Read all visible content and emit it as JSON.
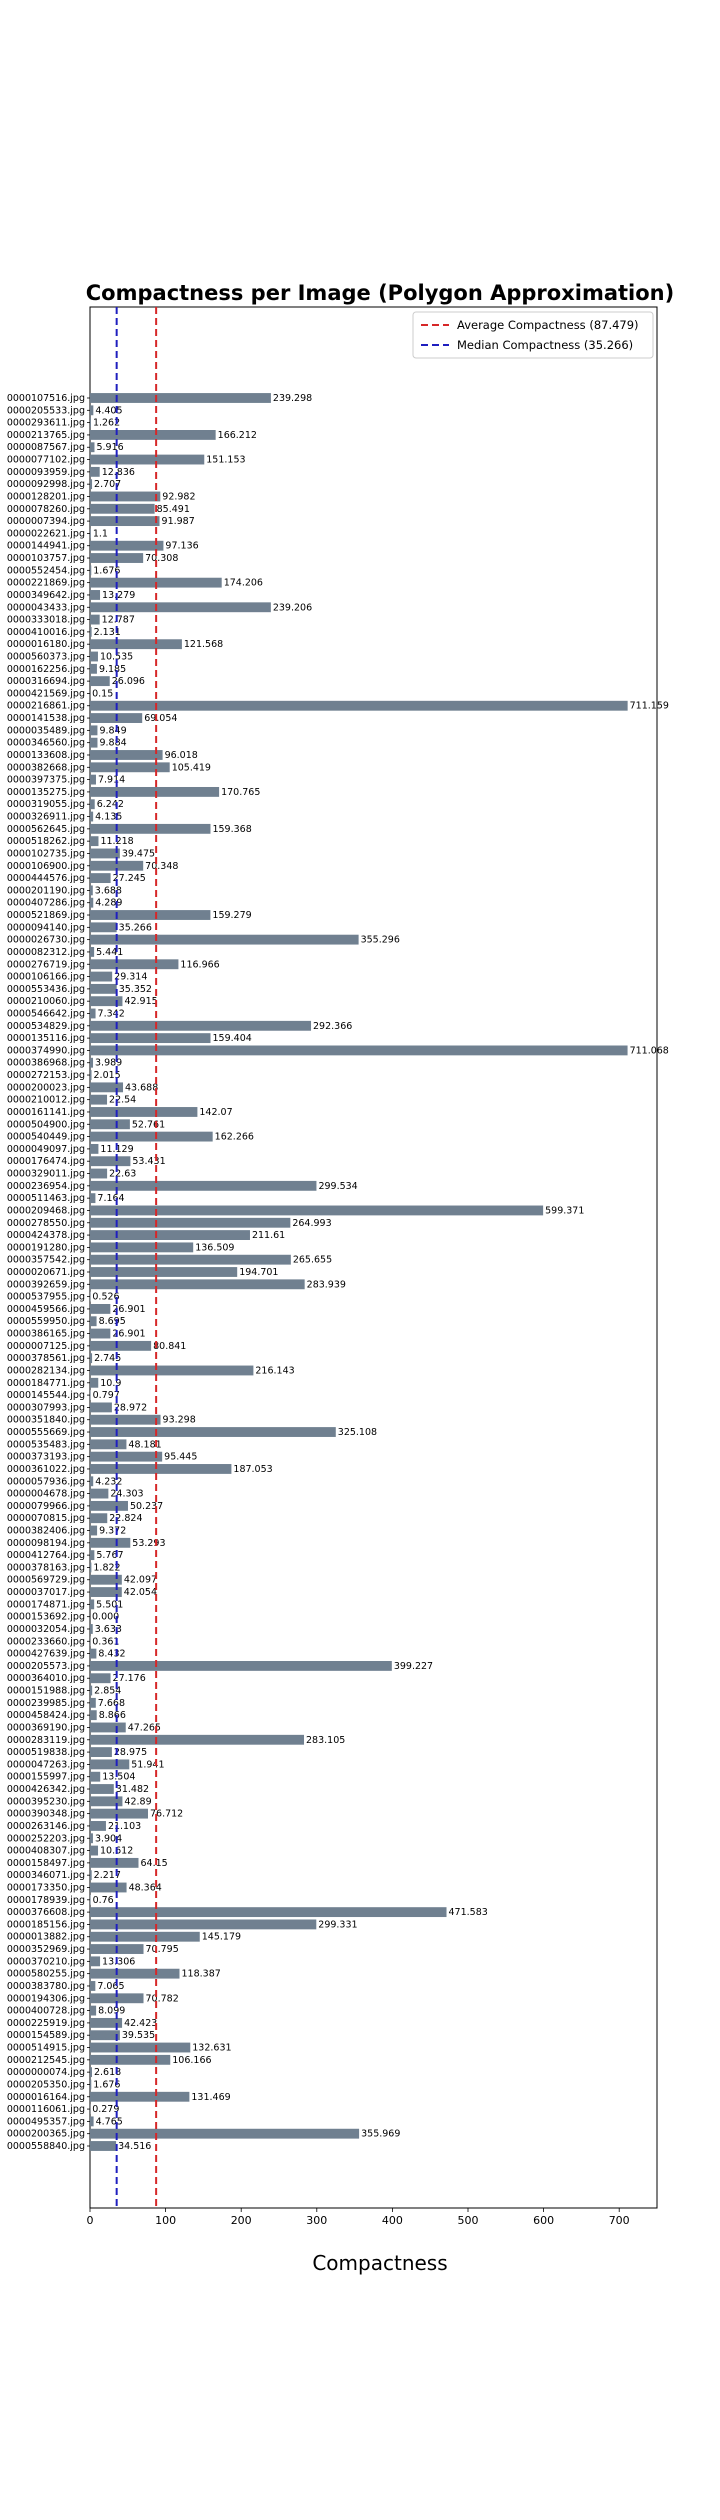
{
  "chart_data": {
    "type": "bar",
    "orientation": "horizontal",
    "title": "Compactness per Image (Polygon Approximation)",
    "xlabel": "Compactness",
    "ylabel": "",
    "xlim": [
      0,
      750
    ],
    "xticks": [
      0,
      100,
      200,
      300,
      400,
      500,
      600,
      700
    ],
    "grid": false,
    "legend_position": "top-right",
    "bar_color": "#708090",
    "reference_lines": [
      {
        "label": "Average Compactness (87.479)",
        "value": 87.479,
        "color": "#d62728",
        "style": "dashed"
      },
      {
        "label": "Median Compactness (35.266)",
        "value": 35.266,
        "color": "#1f1fbf",
        "style": "dashed"
      }
    ],
    "categories": [
      "0000107516.jpg",
      "0000205533.jpg",
      "0000293611.jpg",
      "0000213765.jpg",
      "0000087567.jpg",
      "0000077102.jpg",
      "0000093959.jpg",
      "0000092998.jpg",
      "0000128201.jpg",
      "0000078260.jpg",
      "0000007394.jpg",
      "0000022621.jpg",
      "0000144941.jpg",
      "0000103757.jpg",
      "0000552454.jpg",
      "0000221869.jpg",
      "0000349642.jpg",
      "0000043433.jpg",
      "0000333018.jpg",
      "0000410016.jpg",
      "0000016180.jpg",
      "0000560373.jpg",
      "0000162256.jpg",
      "0000316694.jpg",
      "0000421569.jpg",
      "0000216861.jpg",
      "0000141538.jpg",
      "0000035489.jpg",
      "0000346560.jpg",
      "0000133608.jpg",
      "0000382668.jpg",
      "0000397375.jpg",
      "0000135275.jpg",
      "0000319055.jpg",
      "0000326911.jpg",
      "0000562645.jpg",
      "0000518262.jpg",
      "0000102735.jpg",
      "0000106900.jpg",
      "0000444576.jpg",
      "0000201190.jpg",
      "0000407286.jpg",
      "0000521869.jpg",
      "0000094140.jpg",
      "0000026730.jpg",
      "0000082312.jpg",
      "0000276719.jpg",
      "0000106166.jpg",
      "0000553436.jpg",
      "0000210060.jpg",
      "0000546642.jpg",
      "0000534829.jpg",
      "0000135116.jpg",
      "0000374990.jpg",
      "0000386968.jpg",
      "0000272153.jpg",
      "0000200023.jpg",
      "0000210012.jpg",
      "0000161141.jpg",
      "0000504900.jpg",
      "0000540449.jpg",
      "0000049097.jpg",
      "0000176474.jpg",
      "0000329011.jpg",
      "0000236954.jpg",
      "0000511463.jpg",
      "0000209468.jpg",
      "0000278550.jpg",
      "0000424378.jpg",
      "0000191280.jpg",
      "0000357542.jpg",
      "0000020671.jpg",
      "0000392659.jpg",
      "0000537955.jpg",
      "0000459566.jpg",
      "0000559950.jpg",
      "0000386165.jpg",
      "0000007125.jpg",
      "0000378561.jpg",
      "0000282134.jpg",
      "0000184771.jpg",
      "0000145544.jpg",
      "0000307993.jpg",
      "0000351840.jpg",
      "0000555669.jpg",
      "0000535483.jpg",
      "0000373193.jpg",
      "0000361022.jpg",
      "0000057936.jpg",
      "0000004678.jpg",
      "0000079966.jpg",
      "0000070815.jpg",
      "0000382406.jpg",
      "0000098194.jpg",
      "0000412764.jpg",
      "0000378163.jpg",
      "0000569729.jpg",
      "0000037017.jpg",
      "0000174871.jpg",
      "0000153692.jpg",
      "0000032054.jpg",
      "0000233660.jpg",
      "0000427639.jpg",
      "0000205573.jpg",
      "0000364010.jpg",
      "0000151988.jpg",
      "0000239985.jpg",
      "0000458424.jpg",
      "0000369190.jpg",
      "0000283119.jpg",
      "0000519838.jpg",
      "0000047263.jpg",
      "0000155997.jpg",
      "0000426342.jpg",
      "0000395230.jpg",
      "0000390348.jpg",
      "0000263146.jpg",
      "0000252203.jpg",
      "0000408307.jpg",
      "0000158497.jpg",
      "0000346071.jpg",
      "0000173350.jpg",
      "0000178939.jpg",
      "0000376608.jpg",
      "0000185156.jpg",
      "0000013882.jpg",
      "0000352969.jpg",
      "0000370210.jpg",
      "0000580255.jpg",
      "0000383780.jpg",
      "0000194306.jpg",
      "0000400728.jpg",
      "0000225919.jpg",
      "0000154589.jpg",
      "0000514915.jpg",
      "0000212545.jpg",
      "0000000074.jpg",
      "0000205350.jpg",
      "0000016164.jpg",
      "0000116061.jpg",
      "0000495357.jpg",
      "0000200365.jpg",
      "0000558840.jpg"
    ],
    "values": [
      239.298,
      4.405,
      1.262,
      166.212,
      5.916,
      151.153,
      12.836,
      2.707,
      92.982,
      85.491,
      91.987,
      1.1,
      97.136,
      70.308,
      1.676,
      174.206,
      13.279,
      239.206,
      12.787,
      2.131,
      121.568,
      10.535,
      9.185,
      26.096,
      0.15,
      711.159,
      69.054,
      9.849,
      9.884,
      96.018,
      105.419,
      7.914,
      170.765,
      6.242,
      4.135,
      159.368,
      11.218,
      39.475,
      70.348,
      27.245,
      3.688,
      4.289,
      159.279,
      35.266,
      355.296,
      5.441,
      116.966,
      29.314,
      35.352,
      42.915,
      7.342,
      292.366,
      159.404,
      711.068,
      3.989,
      2.015,
      43.688,
      22.54,
      142.07,
      52.761,
      162.266,
      11.129,
      53.431,
      22.63,
      299.534,
      7.164,
      599.371,
      264.993,
      211.61,
      136.509,
      265.655,
      194.701,
      283.939,
      0.526,
      26.901,
      8.695,
      26.901,
      80.841,
      2.745,
      216.143,
      10.9,
      0.797,
      28.972,
      93.298,
      325.108,
      48.181,
      95.445,
      187.053,
      4.232,
      24.303,
      50.237,
      22.824,
      9.372,
      53.293,
      5.767,
      1.822,
      42.097,
      42.054,
      5.501,
      0.0,
      3.633,
      0.361,
      8.432,
      399.227,
      27.176,
      2.854,
      7.668,
      8.866,
      47.265,
      283.105,
      28.975,
      51.941,
      13.504,
      31.482,
      42.89,
      76.712,
      21.103,
      3.904,
      10.612,
      64.15,
      2.217,
      48.364,
      0.76,
      471.583,
      299.331,
      145.179,
      70.795,
      13.306,
      118.387,
      7.065,
      70.782,
      8.099,
      42.423,
      39.535,
      132.631,
      106.166,
      2.618,
      1.676,
      131.469,
      0.279,
      4.765,
      355.969,
      34.516
    ],
    "value_labels": [
      "239.298",
      "4.405",
      "1.262",
      "166.212",
      "5.916",
      "151.153",
      "12.836",
      "2.707",
      "92.982",
      "85.491",
      "91.987",
      "1.1",
      "97.136",
      "70.308",
      "1.676",
      "174.206",
      "13.279",
      "239.206",
      "12.787",
      "2.131",
      "121.568",
      "10.535",
      "9.185",
      "26.096",
      "0.15",
      "711.159",
      "69.054",
      "9.849",
      "9.884",
      "96.018",
      "105.419",
      "7.914",
      "170.765",
      "6.242",
      "4.135",
      "159.368",
      "11.218",
      "39.475",
      "70.348",
      "27.245",
      "3.688",
      "4.289",
      "159.279",
      "35.266",
      "355.296",
      "5.441",
      "116.966",
      "29.314",
      "35.352",
      "42.915",
      "7.342",
      "292.366",
      "159.404",
      "711.068",
      "3.989",
      "2.015",
      "43.688",
      "22.54",
      "142.07",
      "52.761",
      "162.266",
      "11.129",
      "53.431",
      "22.63",
      "299.534",
      "7.164",
      "599.371",
      "264.993",
      "211.61",
      "136.509",
      "265.655",
      "194.701",
      "283.939",
      "0.526",
      "26.901",
      "8.695",
      "26.901",
      "80.841",
      "2.745",
      "216.143",
      "10.9",
      "0.797",
      "28.972",
      "93.298",
      "325.108",
      "48.181",
      "95.445",
      "187.053",
      "4.232",
      "24.303",
      "50.237",
      "22.824",
      "9.372",
      "53.293",
      "5.767",
      "1.822",
      "42.097",
      "42.054",
      "5.501",
      "0.000",
      "3.633",
      "0.361",
      "8.432",
      "399.227",
      "27.176",
      "2.854",
      "7.668",
      "8.866",
      "47.265",
      "283.105",
      "28.975",
      "51.941",
      "13.504",
      "31.482",
      "42.89",
      "76.712",
      "21.103",
      "3.904",
      "10.612",
      "64.15",
      "2.217",
      "48.364",
      "0.76",
      "471.583",
      "299.331",
      "145.179",
      "70.795",
      "13.306",
      "118.387",
      "7.065",
      "70.782",
      "8.099",
      "42.423",
      "39.535",
      "132.631",
      "106.166",
      "2.618",
      "1.676",
      "131.469",
      "0.279",
      "4.765",
      "355.969",
      "34.516"
    ]
  }
}
